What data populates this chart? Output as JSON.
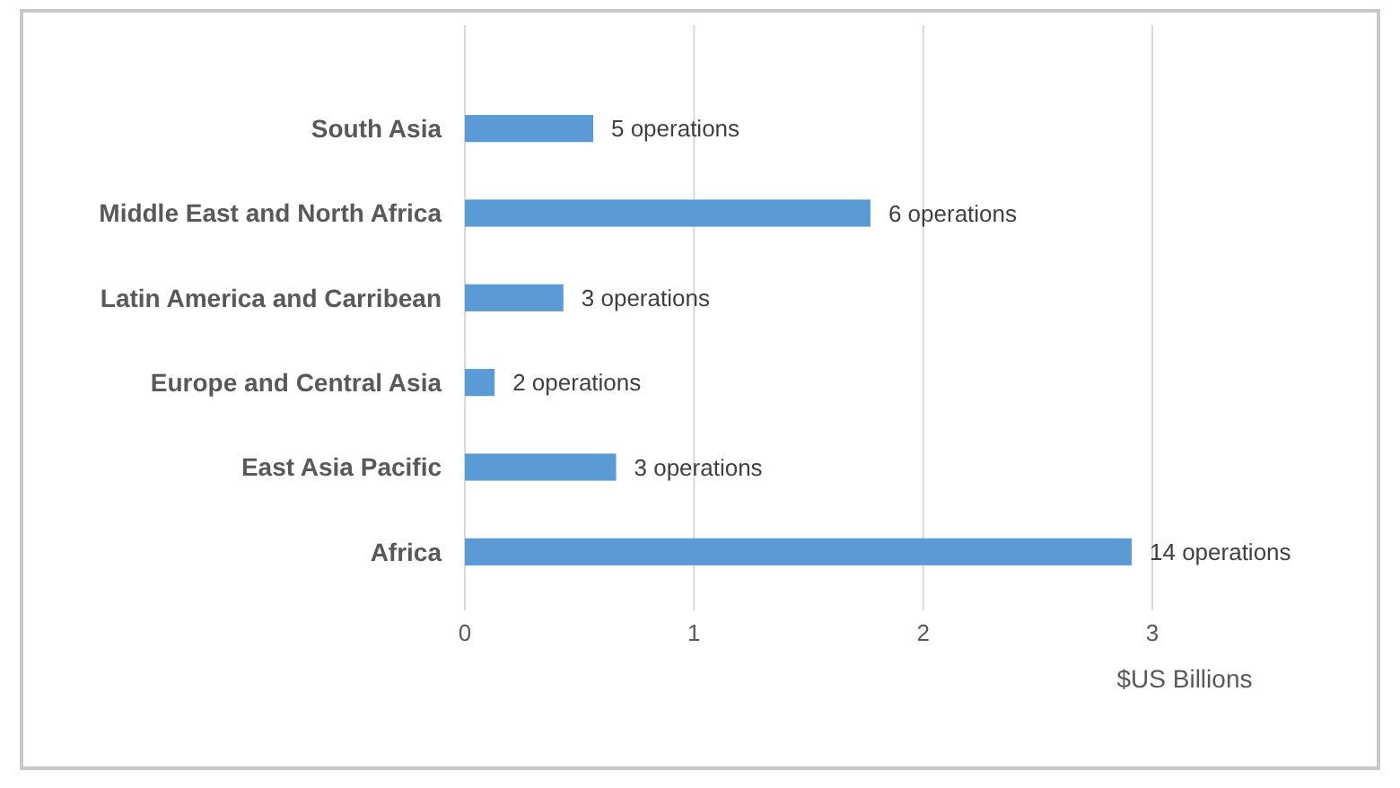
{
  "chart_data": {
    "type": "bar",
    "orientation": "horizontal",
    "categories": [
      "South Asia",
      "Middle East and North Africa",
      "Latin America and Carribean",
      "Europe and Central Asia",
      "East Asia Pacific",
      "Africa"
    ],
    "values": [
      0.56,
      1.77,
      0.43,
      0.13,
      0.66,
      2.91
    ],
    "color": "#5b9bd5",
    "xlim": [
      0,
      3
    ],
    "xticks": [
      0,
      1,
      2,
      3
    ],
    "grid": "x",
    "xlabel": "$US Billions",
    "annotations": [
      {
        "text": "5 operations",
        "x": 0.56,
        "y": "South Asia"
      },
      {
        "text": "6 operations",
        "x": 1.77,
        "y": "Middle East and North Africa"
      },
      {
        "text": "3 operations",
        "x": 0.43,
        "y": "Latin America and Carribean"
      },
      {
        "text": "2 operations",
        "x": 0.13,
        "y": "Europe and Central Asia"
      },
      {
        "text": "3 operations",
        "x": 0.66,
        "y": "East Asia Pacific"
      },
      {
        "text": "14 operations",
        "x": 2.91,
        "y": "Africa"
      }
    ]
  }
}
